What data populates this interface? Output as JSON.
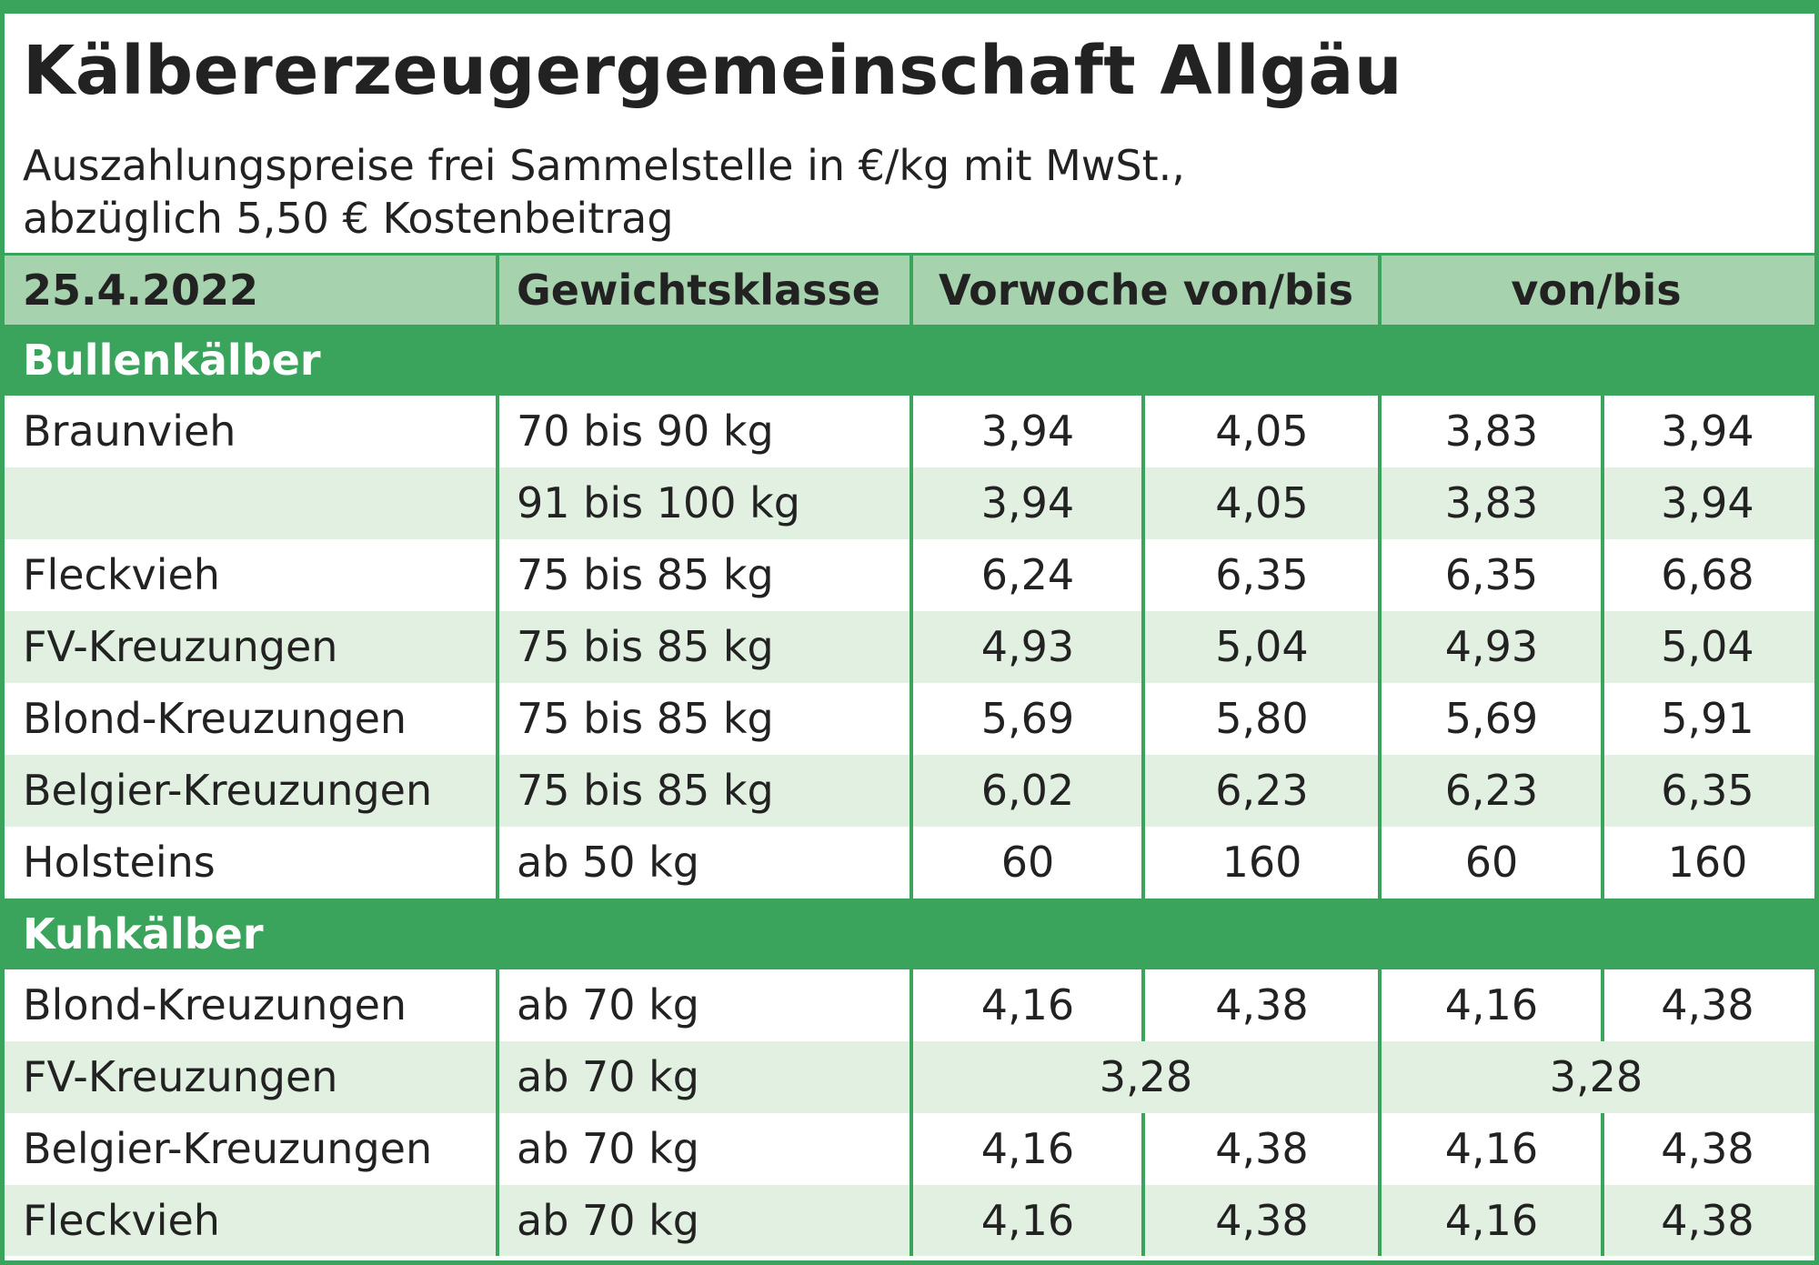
{
  "header": {
    "title": "Kälbererzeugergemeinschaft Allgäu",
    "subtitle_line1": "Auszahlungspreise frei Sammelstelle in €/kg mit MwSt.,",
    "subtitle_line2": "abzüglich 5,50 € Kostenbeitrag"
  },
  "columns": {
    "date": "25.4.2022",
    "weight_class": "Gewichtsklasse",
    "previous_week": "Vorwoche von/bis",
    "current": "von/bis"
  },
  "sections": [
    {
      "title": "Bullenkälber",
      "rows": [
        {
          "breed": "Braunvieh",
          "weight": "70 bis 90 kg",
          "prev_from": "3,94",
          "prev_to": "4,05",
          "cur_from": "3,83",
          "cur_to": "3,94"
        },
        {
          "breed": "",
          "weight": "91 bis 100 kg",
          "prev_from": "3,94",
          "prev_to": "4,05",
          "cur_from": "3,83",
          "cur_to": "3,94"
        },
        {
          "breed": "Fleckvieh",
          "weight": "75 bis 85 kg",
          "prev_from": "6,24",
          "prev_to": "6,35",
          "cur_from": "6,35",
          "cur_to": "6,68"
        },
        {
          "breed": "FV-Kreuzungen",
          "weight": "75 bis 85 kg",
          "prev_from": "4,93",
          "prev_to": "5,04",
          "cur_from": "4,93",
          "cur_to": "5,04"
        },
        {
          "breed": "Blond-Kreuzungen",
          "weight": "75 bis 85 kg",
          "prev_from": "5,69",
          "prev_to": "5,80",
          "cur_from": "5,69",
          "cur_to": "5,91"
        },
        {
          "breed": "Belgier-Kreuzungen",
          "weight": "75 bis 85 kg",
          "prev_from": "6,02",
          "prev_to": "6,23",
          "cur_from": "6,23",
          "cur_to": "6,35"
        },
        {
          "breed": "Holsteins",
          "weight": "ab 50 kg",
          "prev_from": "60",
          "prev_to": "160",
          "cur_from": "60",
          "cur_to": "160"
        }
      ]
    },
    {
      "title": "Kuhkälber",
      "rows": [
        {
          "breed": "Blond-Kreuzungen",
          "weight": "ab 70 kg",
          "prev_from": "4,16",
          "prev_to": "4,38",
          "cur_from": "4,16",
          "cur_to": "4,38"
        },
        {
          "breed": "FV-Kreuzungen",
          "weight": "ab 70 kg",
          "prev_single": "3,28",
          "cur_single": "3,28"
        },
        {
          "breed": "Belgier-Kreuzungen",
          "weight": "ab 70 kg",
          "prev_from": "4,16",
          "prev_to": "4,38",
          "cur_from": "4,16",
          "cur_to": "4,38"
        },
        {
          "breed": "Fleckvieh",
          "weight": "ab 70 kg",
          "prev_from": "4,16",
          "prev_to": "4,38",
          "cur_from": "4,16",
          "cur_to": "4,38"
        }
      ]
    }
  ],
  "colors": {
    "accent_green": "#3aa35c",
    "header_row_green": "#a6d2ae",
    "alt_row_green": "#e1f0e1"
  }
}
